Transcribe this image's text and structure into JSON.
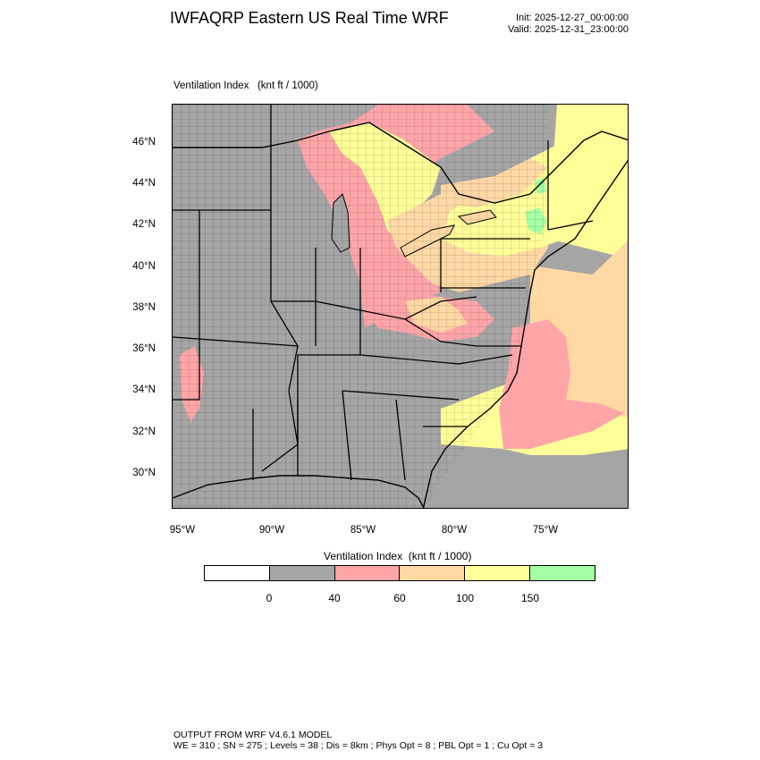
{
  "header": {
    "title": "IWFAQRP Eastern US Real Time WRF",
    "init": "Init: 2025-12-27_00:00:00",
    "valid": "Valid: 2025-12-31_23:00:00"
  },
  "map": {
    "field_label": "Ventilation Index   (knt ft / 1000)",
    "lat_labels": [
      "46°N",
      "44°N",
      "42°N",
      "40°N",
      "38°N",
      "36°N",
      "34°N",
      "32°N",
      "30°N"
    ],
    "lon_labels": [
      "95°W",
      "90°W",
      "85°W",
      "80°W",
      "75°W"
    ]
  },
  "legend": {
    "title": "Ventilation Index  (knt ft / 1000)",
    "colors": [
      "#ffffff",
      "#a5a5a5",
      "#ffa5a8",
      "#ffd8a4",
      "#ffff99",
      "#a5ffa5"
    ],
    "ticks": [
      "0",
      "40",
      "60",
      "100",
      "150"
    ]
  },
  "footer": {
    "line1": "OUTPUT FROM WRF V4.6.1 MODEL",
    "line2": "WE = 310 ; SN = 275 ; Levels = 38 ; Dis = 8km ; Phys Opt = 8 ; PBL Opt = 1 ; Cu Opt = 3"
  }
}
